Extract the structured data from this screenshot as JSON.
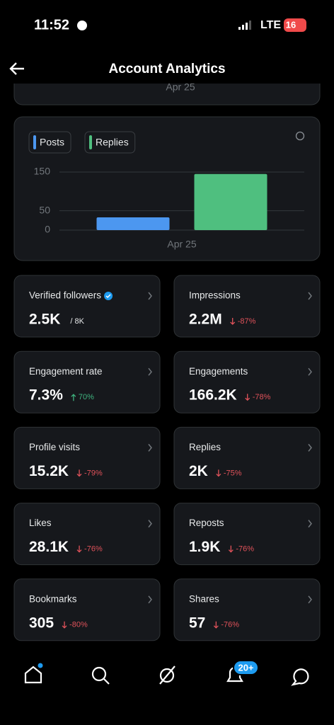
{
  "status": {
    "time": "11:52",
    "network": "LTE",
    "battery": "16"
  },
  "header": {
    "title": "Account Analytics"
  },
  "previous_card": {
    "label": "Apr 25"
  },
  "chart_data": {
    "type": "bar",
    "categories": [
      "Apr 25"
    ],
    "series": [
      {
        "name": "Posts",
        "color": "#4c97f0",
        "values": [
          33
        ]
      },
      {
        "name": "Replies",
        "color": "#4fbf7f",
        "values": [
          145
        ]
      }
    ],
    "ylim": [
      0,
      150
    ],
    "yticks": [
      0,
      50,
      150
    ],
    "grid": true
  },
  "metrics": [
    {
      "label": "Verified followers",
      "value": "2.5K",
      "total": "/ 8K",
      "verified": true
    },
    {
      "label": "Impressions",
      "value": "2.2M",
      "change": "-87%",
      "trend": "down"
    },
    {
      "label": "Engagement rate",
      "value": "7.3%",
      "change": "70%",
      "trend": "up"
    },
    {
      "label": "Engagements",
      "value": "166.2K",
      "change": "-78%",
      "trend": "down"
    },
    {
      "label": "Profile visits",
      "value": "15.2K",
      "change": "-79%",
      "trend": "down"
    },
    {
      "label": "Replies",
      "value": "2K",
      "change": "-75%",
      "trend": "down"
    },
    {
      "label": "Likes",
      "value": "28.1K",
      "change": "-76%",
      "trend": "down"
    },
    {
      "label": "Reposts",
      "value": "1.9K",
      "change": "-76%",
      "trend": "down"
    },
    {
      "label": "Bookmarks",
      "value": "305",
      "change": "-80%",
      "trend": "down"
    },
    {
      "label": "Shares",
      "value": "57",
      "change": "-76%",
      "trend": "down"
    }
  ],
  "nav": {
    "badge": "20+"
  }
}
